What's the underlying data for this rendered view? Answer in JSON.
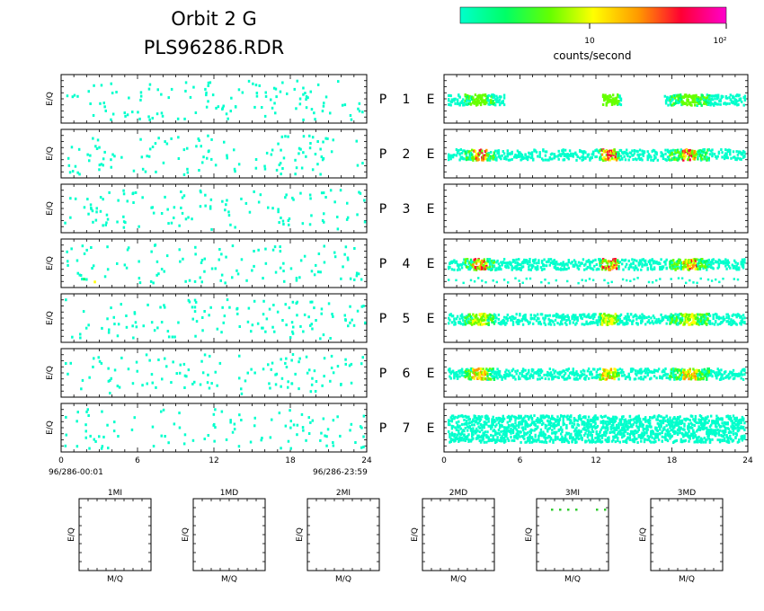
{
  "header": {
    "title_line1": "Orbit 2 G",
    "title_line2": "PLS96286.RDR"
  },
  "colorbar": {
    "tick_10": "10",
    "tick_100": "10²",
    "label": "counts/second",
    "colors": [
      "#00ffcc",
      "#00ff66",
      "#66ff00",
      "#ffff00",
      "#ff9900",
      "#ff0033",
      "#ff00cc"
    ]
  },
  "rows": [
    {
      "p": "P",
      "n": "1",
      "e": "E"
    },
    {
      "p": "P",
      "n": "2",
      "e": "E"
    },
    {
      "p": "P",
      "n": "3",
      "e": "E"
    },
    {
      "p": "P",
      "n": "4",
      "e": "E"
    },
    {
      "p": "P",
      "n": "5",
      "e": "E"
    },
    {
      "p": "P",
      "n": "6",
      "e": "E"
    },
    {
      "p": "P",
      "n": "7",
      "e": "E"
    }
  ],
  "axis": {
    "ylabel": "E/Q",
    "xticks": [
      "0",
      "6",
      "12",
      "18",
      "24"
    ],
    "start_time": "96/286-00:01",
    "end_time": "96/286-23:59"
  },
  "small_panels": [
    {
      "title": "1MI",
      "xlabel": "M/Q",
      "ylabel": "E/Q"
    },
    {
      "title": "1MD",
      "xlabel": "M/Q",
      "ylabel": "E/Q"
    },
    {
      "title": "2MI",
      "xlabel": "M/Q",
      "ylabel": "E/Q"
    },
    {
      "title": "2MD",
      "xlabel": "M/Q",
      "ylabel": "E/Q"
    },
    {
      "title": "3MI",
      "xlabel": "M/Q",
      "ylabel": "E/Q"
    },
    {
      "title": "3MD",
      "xlabel": "M/Q",
      "ylabel": "E/Q"
    }
  ],
  "chart_data": [
    {
      "type": "heatmap",
      "description_scope": "left column",
      "panels": [
        "P 1",
        "P 2",
        "P 3",
        "P 4",
        "P 5",
        "P 6",
        "P 7"
      ],
      "xlim": [
        0,
        24
      ],
      "xticks": [
        0,
        6,
        12,
        18,
        24
      ],
      "ylabel": "E/Q",
      "color_scale": "log",
      "color_label": "counts/second",
      "sparse_activity": [
        {
          "panel": "P 1",
          "busy_hours": [
            [
              1,
              4
            ],
            [
              12,
              14
            ],
            [
              17,
              21
            ]
          ]
        },
        {
          "panel": "P 2",
          "busy_hours": [
            [
              1,
              4
            ],
            [
              17,
              21
            ]
          ]
        },
        {
          "panel": "P 3",
          "busy_hours": [
            [
              1,
              5
            ],
            [
              17,
              21
            ]
          ]
        },
        {
          "panel": "P 4",
          "busy_hours": [
            [
              1,
              4
            ]
          ]
        },
        {
          "panel": "P 5",
          "busy_hours": [
            [
              1,
              3
            ],
            [
              17,
              20
            ]
          ]
        },
        {
          "panel": "P 6",
          "busy_hours": [
            [
              1,
              4
            ],
            [
              16,
              20
            ]
          ]
        },
        {
          "panel": "P 7",
          "busy_hours": [
            [
              1,
              4
            ],
            [
              17,
              22
            ]
          ]
        }
      ]
    },
    {
      "type": "heatmap",
      "description_scope": "right column",
      "panels": [
        "P 1",
        "P 2",
        "P 3",
        "P 4",
        "P 5",
        "P 6",
        "P 7"
      ],
      "xlim": [
        0,
        24
      ],
      "xticks": [
        0,
        6,
        12,
        18,
        24
      ],
      "color_scale": "log",
      "bands": [
        {
          "panel": "P 1",
          "segments": [
            [
              0,
              4.5,
              2
            ],
            [
              12.5,
              14,
              1
            ],
            [
              17.5,
              24,
              1
            ]
          ],
          "peak_hour": 2.5,
          "peak_level": 2
        },
        {
          "panel": "P 2",
          "segments": [
            [
              0,
              24,
              2
            ]
          ],
          "peak_hour": 2.5,
          "peak_level": 5
        },
        {
          "panel": "P 3",
          "segments": []
        },
        {
          "panel": "P 4",
          "segments": [
            [
              0,
              24,
              2
            ]
          ],
          "peak_hour": 2.5,
          "peak_level": 5
        },
        {
          "panel": "P 5",
          "segments": [
            [
              0,
              24,
              2
            ]
          ],
          "peak_hour": 2.5,
          "peak_level": 3
        },
        {
          "panel": "P 6",
          "segments": [
            [
              0,
              24,
              2
            ]
          ],
          "peak_hour": 2.5,
          "peak_level": 4
        },
        {
          "panel": "P 7",
          "segments": [
            [
              0,
              24,
              1
            ]
          ],
          "peak_hour": 2.5,
          "peak_level": 2
        }
      ]
    },
    {
      "type": "scatter",
      "description_scope": "mass panels",
      "panels": [
        "1MI",
        "1MD",
        "2MI",
        "2MD",
        "3MI",
        "3MD"
      ],
      "xlabel": "M/Q",
      "ylabel": "E/Q",
      "points": [
        {
          "panel": "3MI",
          "count": 6
        }
      ]
    }
  ]
}
